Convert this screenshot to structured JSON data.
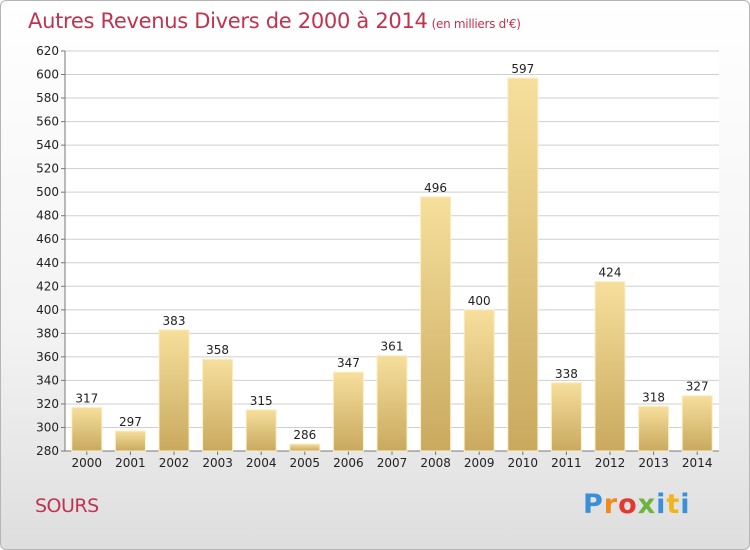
{
  "header": {
    "title": "Autres Revenus Divers de 2000 à 2014",
    "unit": "(en milliers d'€)"
  },
  "footer": {
    "place": "SOURS",
    "logo": "Proxiti"
  },
  "colors": {
    "title": "#c0334f",
    "bar_light": "#f6df9c",
    "bar_dark": "#c9a95e",
    "grid": "#cfcfcf"
  },
  "chart_data": {
    "type": "bar",
    "title": "Autres Revenus Divers de 2000 à 2014",
    "subtitle": "(en milliers d'€)",
    "xlabel": "",
    "ylabel": "",
    "categories": [
      "2000",
      "2001",
      "2002",
      "2003",
      "2004",
      "2005",
      "2006",
      "2007",
      "2008",
      "2009",
      "2010",
      "2011",
      "2012",
      "2013",
      "2014"
    ],
    "values": [
      317,
      297,
      383,
      358,
      315,
      286,
      347,
      361,
      496,
      400,
      597,
      338,
      424,
      318,
      327
    ],
    "ylim": [
      280,
      620
    ],
    "yticks": [
      280,
      300,
      320,
      340,
      360,
      380,
      400,
      420,
      440,
      460,
      480,
      500,
      520,
      540,
      560,
      580,
      600,
      620
    ],
    "grid": true,
    "data_labels": true
  }
}
